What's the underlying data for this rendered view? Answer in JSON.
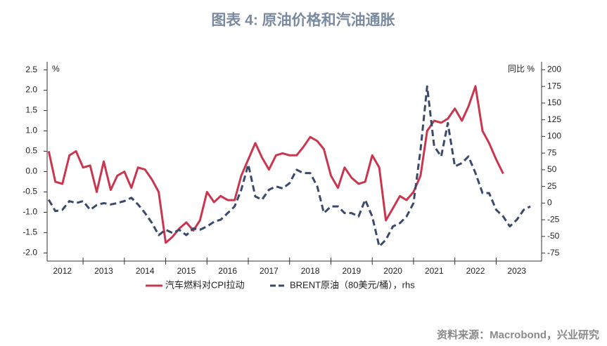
{
  "chart_data": {
    "type": "line",
    "title": "图表 4:  原油价格和汽油通胀",
    "y_label": "%",
    "y2_label": "同比 %",
    "source": "资料来源：Macrobond，兴业研究",
    "x": [
      2012.17,
      2012.33,
      2012.5,
      2012.67,
      2012.83,
      2013.0,
      2013.17,
      2013.33,
      2013.5,
      2013.67,
      2013.83,
      2014.0,
      2014.17,
      2014.33,
      2014.5,
      2014.67,
      2014.83,
      2015.0,
      2015.17,
      2015.33,
      2015.5,
      2015.67,
      2015.83,
      2016.0,
      2016.17,
      2016.33,
      2016.5,
      2016.67,
      2016.83,
      2017.0,
      2017.17,
      2017.33,
      2017.5,
      2017.67,
      2017.83,
      2018.0,
      2018.17,
      2018.33,
      2018.5,
      2018.67,
      2018.83,
      2019.0,
      2019.17,
      2019.33,
      2019.5,
      2019.67,
      2019.83,
      2020.0,
      2020.17,
      2020.33,
      2020.5,
      2020.67,
      2020.83,
      2021.0,
      2021.17,
      2021.33,
      2021.5,
      2021.67,
      2021.83,
      2022.0,
      2022.17,
      2022.33,
      2022.5,
      2022.67,
      2022.83,
      2023.0,
      2023.17,
      2023.33,
      2023.5,
      2023.67,
      2023.83
    ],
    "series": [
      {
        "name": "汽车燃料对CPI拉动",
        "color": "#c8374f",
        "dash": false,
        "values": [
          0.5,
          -0.25,
          -0.3,
          0.4,
          0.5,
          0.1,
          0.15,
          -0.5,
          0.25,
          -0.45,
          -0.1,
          0.0,
          -0.4,
          0.1,
          0.05,
          -0.2,
          -0.5,
          -1.75,
          -1.6,
          -1.4,
          -1.25,
          -1.45,
          -1.2,
          -0.5,
          -0.75,
          -0.6,
          -0.7,
          -0.7,
          -0.1,
          0.3,
          0.7,
          0.35,
          0.05,
          0.4,
          0.45,
          0.4,
          0.4,
          0.6,
          0.85,
          0.75,
          0.55,
          -0.1,
          -0.4,
          0.1,
          -0.15,
          -0.3,
          -0.25,
          0.4,
          0.1,
          -1.2,
          -0.9,
          -0.6,
          -0.7,
          -0.5,
          -0.1,
          1.0,
          1.25,
          1.2,
          1.3,
          1.55,
          1.25,
          1.6,
          2.1,
          1.0,
          0.7,
          0.3,
          -0.05,
          null,
          null,
          null,
          null
        ]
      },
      {
        "name": "BRENT原油（80美元/桶），rhs",
        "color": "#3b4a6b",
        "dash": true,
        "axis": "y2",
        "values": [
          5,
          -12,
          -10,
          3,
          0,
          3,
          -10,
          -3,
          0,
          -2,
          0,
          3,
          8,
          -2,
          -15,
          -30,
          -48,
          -40,
          -45,
          -40,
          -48,
          -38,
          -40,
          -35,
          -28,
          -25,
          -15,
          -5,
          20,
          58,
          10,
          5,
          20,
          25,
          22,
          30,
          50,
          45,
          45,
          25,
          -15,
          -5,
          -5,
          -15,
          -15,
          -20,
          5,
          -20,
          -65,
          -55,
          -35,
          -30,
          -20,
          0,
          80,
          175,
          85,
          70,
          120,
          55,
          60,
          70,
          45,
          15,
          15,
          -10,
          -20,
          -35,
          -25,
          -10,
          -5
        ]
      }
    ],
    "xlim": [
      2012.13,
      2024.1
    ],
    "xticks": [
      2012,
      2013,
      2014,
      2015,
      2016,
      2017,
      2018,
      2019,
      2020,
      2021,
      2022,
      2023
    ],
    "ylim": [
      -2.2,
      2.7
    ],
    "yticks": [
      2.5,
      {
        "value": 2.0,
        "label": "2.0"
      },
      1.5,
      {
        "value": 1.0,
        "label": "1.0"
      },
      0.5,
      {
        "value": 0.0,
        "label": "0.0"
      },
      -0.5,
      {
        "value": -1.0,
        "label": "-1.0"
      },
      -1.5,
      {
        "value": -2.0,
        "label": "-2.0"
      }
    ],
    "y2lim": [
      -87,
      212
    ],
    "y2ticks": [
      200,
      175,
      150,
      125,
      100,
      75,
      50,
      25,
      0,
      -25,
      -50,
      -75
    ],
    "grid": false,
    "legend": "bottom"
  }
}
